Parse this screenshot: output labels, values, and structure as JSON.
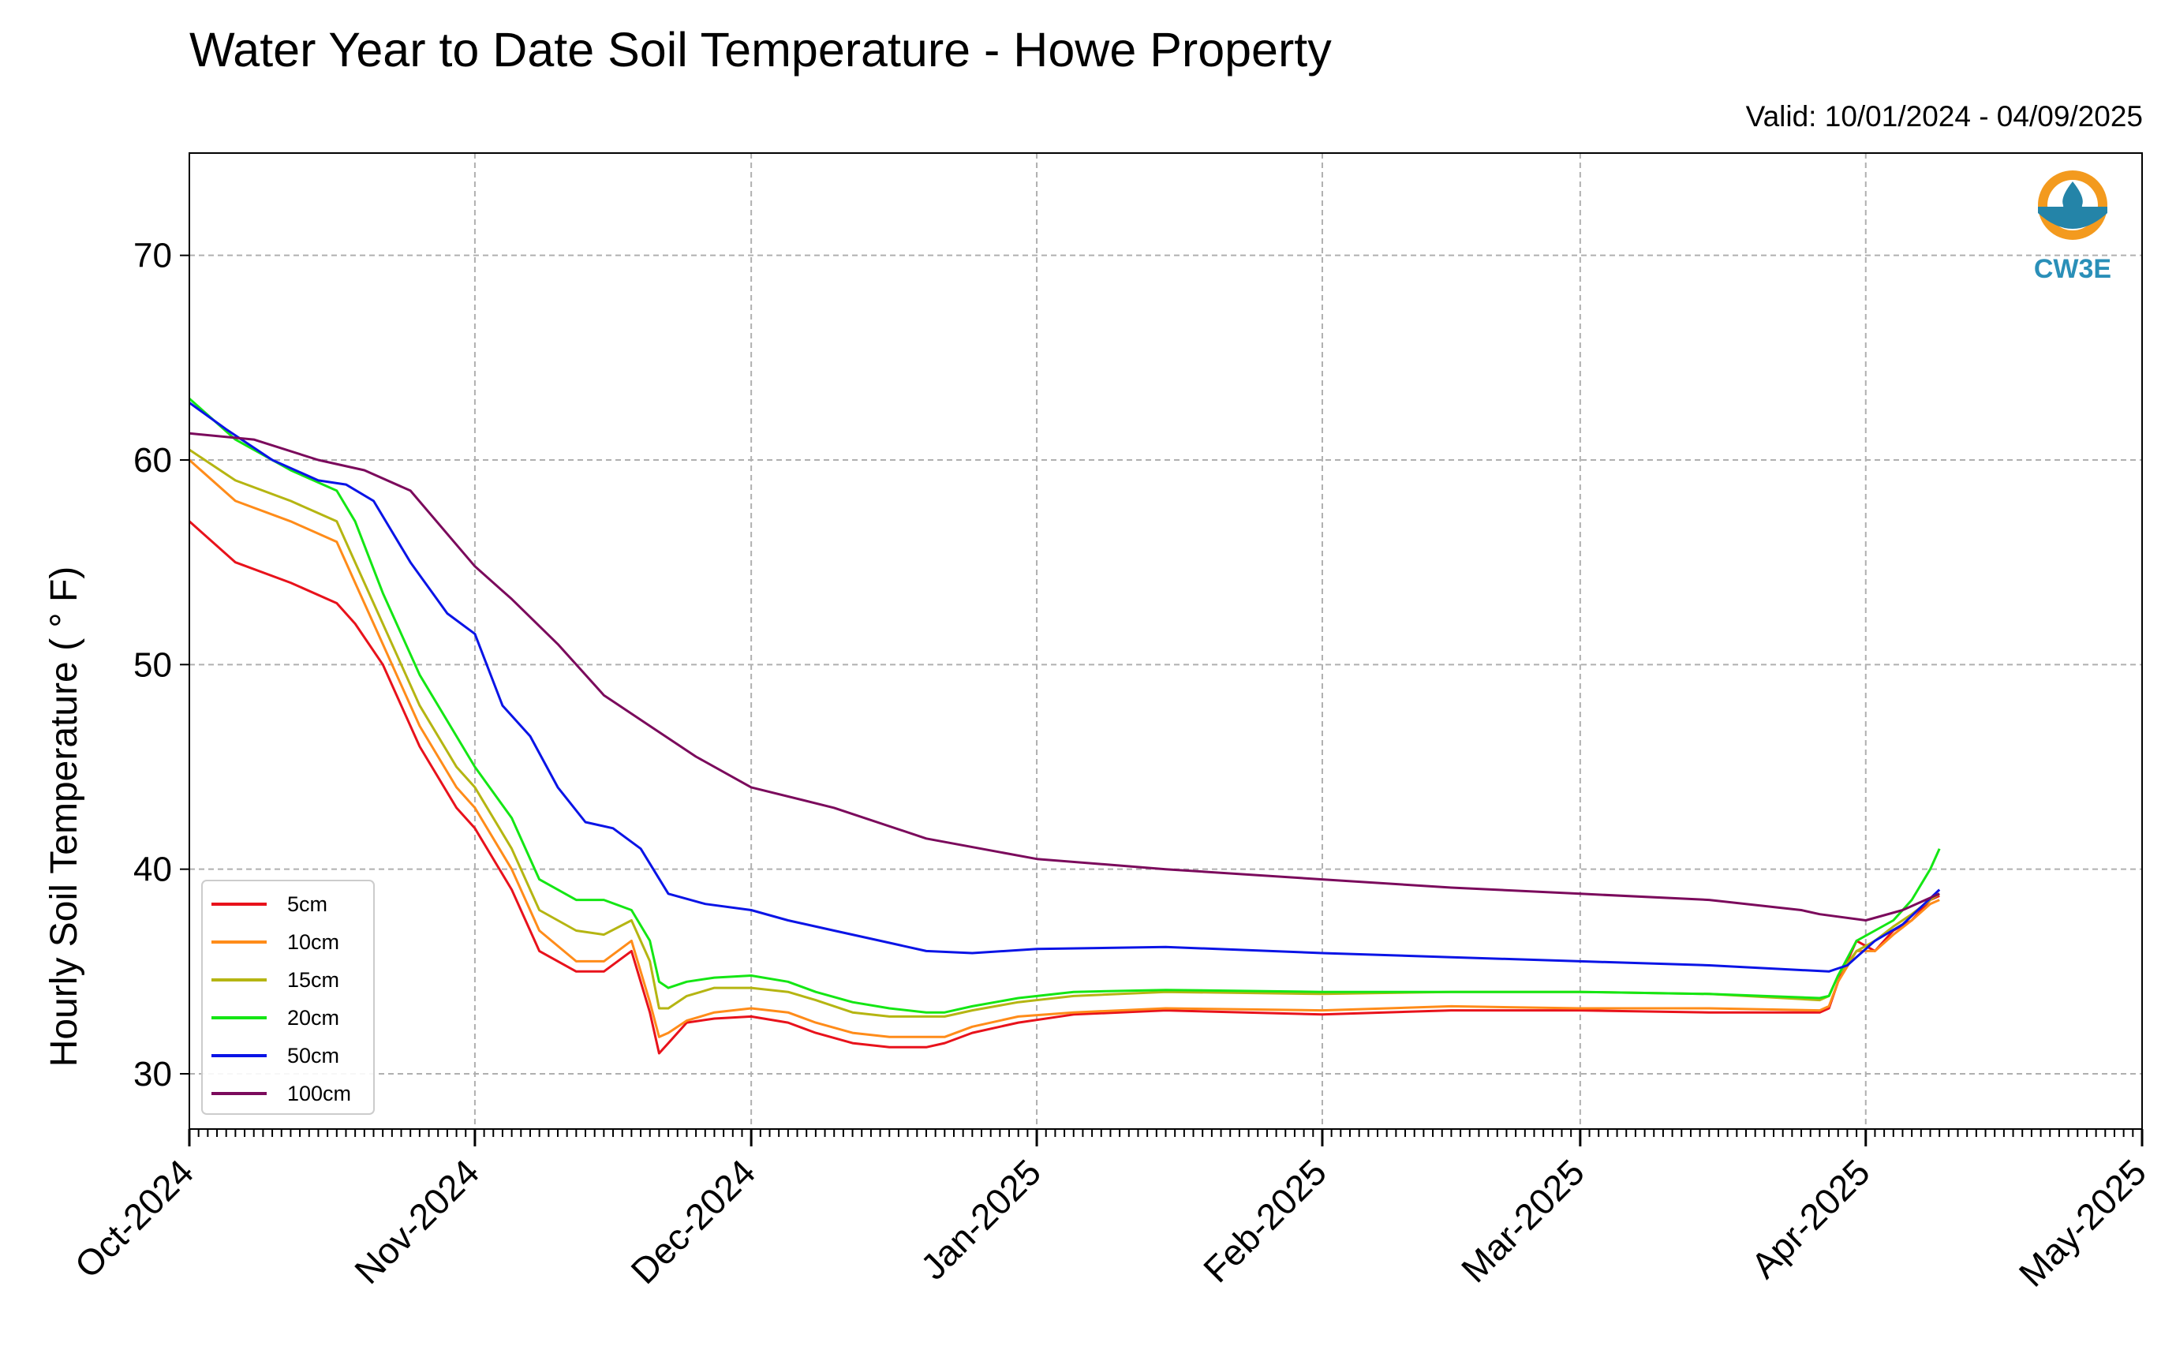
{
  "chart_data": {
    "type": "line",
    "title": "Water Year to Date Soil Temperature - Howe Property",
    "subtitle": "Valid: 10/01/2024 - 04/09/2025",
    "xlabel": "",
    "ylabel": "Hourly Soil Temperature ( ° F)",
    "logo_text": "CW3E",
    "x_type": "date",
    "xlim": [
      "2024-10-01",
      "2025-05-01"
    ],
    "ylim": [
      27.3,
      75
    ],
    "yticks": [
      30,
      40,
      50,
      60,
      70
    ],
    "xtick_labels": [
      "Oct-2024",
      "Nov-2024",
      "Dec-2024",
      "Jan-2025",
      "Feb-2025",
      "Mar-2025",
      "Apr-2025",
      "May-2025"
    ],
    "xtick_dates": [
      "2024-10-01",
      "2024-11-01",
      "2024-12-01",
      "2025-01-01",
      "2025-02-01",
      "2025-03-01",
      "2025-04-01",
      "2025-05-01"
    ],
    "grid": true,
    "legend_position": "bottom-left",
    "series": [
      {
        "name": "5cm",
        "color": "#e8121b",
        "x": [
          "2024-10-01",
          "2024-10-06",
          "2024-10-12",
          "2024-10-17",
          "2024-10-19",
          "2024-10-22",
          "2024-10-26",
          "2024-10-30",
          "2024-11-01",
          "2024-11-05",
          "2024-11-08",
          "2024-11-12",
          "2024-11-15",
          "2024-11-18",
          "2024-11-20",
          "2024-11-21",
          "2024-11-22",
          "2024-11-24",
          "2024-11-27",
          "2024-12-01",
          "2024-12-05",
          "2024-12-08",
          "2024-12-12",
          "2024-12-16",
          "2024-12-20",
          "2024-12-22",
          "2024-12-25",
          "2024-12-30",
          "2025-01-05",
          "2025-01-15",
          "2025-02-01",
          "2025-02-15",
          "2025-03-01",
          "2025-03-15",
          "2025-03-27",
          "2025-03-28",
          "2025-03-29",
          "2025-03-31",
          "2025-04-02",
          "2025-04-04",
          "2025-04-06",
          "2025-04-08",
          "2025-04-09"
        ],
        "y": [
          57,
          55,
          54,
          53,
          52,
          50,
          46,
          43,
          42,
          39,
          36,
          35,
          35,
          36,
          33,
          31,
          31.5,
          32.5,
          32.7,
          32.8,
          32.5,
          32,
          31.5,
          31.3,
          31.3,
          31.5,
          32,
          32.5,
          32.9,
          33.1,
          32.9,
          33.1,
          33.1,
          33,
          33,
          33.2,
          34.5,
          36.5,
          36,
          37,
          37.5,
          38.5,
          38.7
        ]
      },
      {
        "name": "10cm",
        "color": "#ff8c1a",
        "x": [
          "2024-10-01",
          "2024-10-06",
          "2024-10-12",
          "2024-10-17",
          "2024-10-19",
          "2024-10-22",
          "2024-10-26",
          "2024-10-30",
          "2024-11-01",
          "2024-11-05",
          "2024-11-08",
          "2024-11-12",
          "2024-11-15",
          "2024-11-18",
          "2024-11-20",
          "2024-11-21",
          "2024-11-22",
          "2024-11-24",
          "2024-11-27",
          "2024-12-01",
          "2024-12-05",
          "2024-12-08",
          "2024-12-12",
          "2024-12-16",
          "2024-12-20",
          "2024-12-22",
          "2024-12-25",
          "2024-12-30",
          "2025-01-05",
          "2025-01-15",
          "2025-02-01",
          "2025-02-15",
          "2025-03-01",
          "2025-03-15",
          "2025-03-27",
          "2025-03-28",
          "2025-03-29",
          "2025-03-31",
          "2025-04-02",
          "2025-04-04",
          "2025-04-06",
          "2025-04-08",
          "2025-04-09"
        ],
        "y": [
          60,
          58,
          57,
          56,
          54,
          51,
          47,
          44,
          43,
          40,
          37,
          35.5,
          35.5,
          36.5,
          33.5,
          31.8,
          32,
          32.6,
          33,
          33.2,
          33,
          32.5,
          32,
          31.8,
          31.8,
          31.8,
          32.3,
          32.8,
          33,
          33.2,
          33.1,
          33.3,
          33.2,
          33.2,
          33.1,
          33.3,
          34.5,
          36,
          36,
          36.8,
          37.5,
          38.3,
          38.5
        ]
      },
      {
        "name": "15cm",
        "color": "#b5b512",
        "x": [
          "2024-10-01",
          "2024-10-06",
          "2024-10-12",
          "2024-10-17",
          "2024-10-19",
          "2024-10-22",
          "2024-10-26",
          "2024-10-30",
          "2024-11-01",
          "2024-11-05",
          "2024-11-08",
          "2024-11-12",
          "2024-11-15",
          "2024-11-18",
          "2024-11-20",
          "2024-11-21",
          "2024-11-22",
          "2024-11-24",
          "2024-11-27",
          "2024-12-01",
          "2024-12-05",
          "2024-12-08",
          "2024-12-12",
          "2024-12-16",
          "2024-12-20",
          "2024-12-22",
          "2024-12-25",
          "2024-12-30",
          "2025-01-05",
          "2025-01-15",
          "2025-02-01",
          "2025-02-15",
          "2025-03-01",
          "2025-03-15",
          "2025-03-27",
          "2025-03-28",
          "2025-03-29",
          "2025-03-31",
          "2025-04-02",
          "2025-04-04",
          "2025-04-06",
          "2025-04-08",
          "2025-04-09"
        ],
        "y": [
          60.5,
          59,
          58,
          57,
          55,
          52,
          48,
          45,
          44,
          41,
          38,
          37,
          36.8,
          37.5,
          35.5,
          33.2,
          33.2,
          33.8,
          34.2,
          34.2,
          34,
          33.6,
          33,
          32.8,
          32.8,
          32.8,
          33.1,
          33.5,
          33.8,
          34,
          33.9,
          34,
          34,
          33.9,
          33.6,
          33.8,
          34.8,
          36,
          36.5,
          37.2,
          37.8,
          38.5,
          38.8
        ]
      },
      {
        "name": "20cm",
        "color": "#14e614",
        "x": [
          "2024-10-01",
          "2024-10-06",
          "2024-10-12",
          "2024-10-17",
          "2024-10-19",
          "2024-10-22",
          "2024-10-26",
          "2024-10-30",
          "2024-11-01",
          "2024-11-05",
          "2024-11-08",
          "2024-11-12",
          "2024-11-15",
          "2024-11-18",
          "2024-11-20",
          "2024-11-21",
          "2024-11-22",
          "2024-11-24",
          "2024-11-27",
          "2024-12-01",
          "2024-12-05",
          "2024-12-08",
          "2024-12-12",
          "2024-12-16",
          "2024-12-20",
          "2024-12-22",
          "2024-12-25",
          "2024-12-30",
          "2025-01-05",
          "2025-01-15",
          "2025-02-01",
          "2025-02-15",
          "2025-03-01",
          "2025-03-15",
          "2025-03-27",
          "2025-03-28",
          "2025-03-29",
          "2025-03-31",
          "2025-04-02",
          "2025-04-04",
          "2025-04-06",
          "2025-04-08",
          "2025-04-09"
        ],
        "y": [
          63,
          61,
          59.5,
          58.5,
          57,
          53.5,
          49.5,
          46.5,
          45,
          42.5,
          39.5,
          38.5,
          38.5,
          38,
          36.5,
          34.5,
          34.2,
          34.5,
          34.7,
          34.8,
          34.5,
          34,
          33.5,
          33.2,
          33,
          33,
          33.3,
          33.7,
          34,
          34.1,
          34,
          34,
          34,
          33.9,
          33.7,
          33.8,
          34.8,
          36.5,
          37,
          37.5,
          38.5,
          40,
          41
        ]
      },
      {
        "name": "50cm",
        "color": "#0a14e6",
        "x": [
          "2024-10-01",
          "2024-10-05",
          "2024-10-10",
          "2024-10-15",
          "2024-10-18",
          "2024-10-21",
          "2024-10-25",
          "2024-10-29",
          "2024-11-01",
          "2024-11-04",
          "2024-11-07",
          "2024-11-10",
          "2024-11-13",
          "2024-11-16",
          "2024-11-19",
          "2024-11-22",
          "2024-11-26",
          "2024-12-01",
          "2024-12-05",
          "2024-12-10",
          "2024-12-15",
          "2024-12-20",
          "2024-12-25",
          "2025-01-01",
          "2025-01-15",
          "2025-02-01",
          "2025-02-15",
          "2025-03-01",
          "2025-03-15",
          "2025-03-28",
          "2025-03-30",
          "2025-04-02",
          "2025-04-05",
          "2025-04-09"
        ],
        "y": [
          62.8,
          61.5,
          60,
          59,
          58.8,
          58,
          55,
          52.5,
          51.5,
          48,
          46.5,
          44,
          42.3,
          42,
          41,
          38.8,
          38.3,
          38,
          37.5,
          37,
          36.5,
          36,
          35.9,
          36.1,
          36.2,
          35.9,
          35.7,
          35.5,
          35.3,
          35,
          35.3,
          36.5,
          37.3,
          39
        ]
      },
      {
        "name": "100cm",
        "color": "#7b0a5c",
        "x": [
          "2024-10-01",
          "2024-10-08",
          "2024-10-15",
          "2024-10-20",
          "2024-10-25",
          "2024-11-01",
          "2024-11-05",
          "2024-11-10",
          "2024-11-15",
          "2024-11-20",
          "2024-11-25",
          "2024-12-01",
          "2024-12-10",
          "2024-12-20",
          "2025-01-01",
          "2025-01-15",
          "2025-02-01",
          "2025-02-15",
          "2025-03-01",
          "2025-03-15",
          "2025-03-25",
          "2025-03-27",
          "2025-04-01",
          "2025-04-05",
          "2025-04-09"
        ],
        "y": [
          61.3,
          61,
          60,
          59.5,
          58.5,
          54.8,
          53.2,
          51,
          48.5,
          47,
          45.5,
          44,
          43,
          41.5,
          40.5,
          40,
          39.5,
          39.1,
          38.8,
          38.5,
          38,
          37.8,
          37.5,
          38,
          38.8
        ]
      }
    ]
  }
}
